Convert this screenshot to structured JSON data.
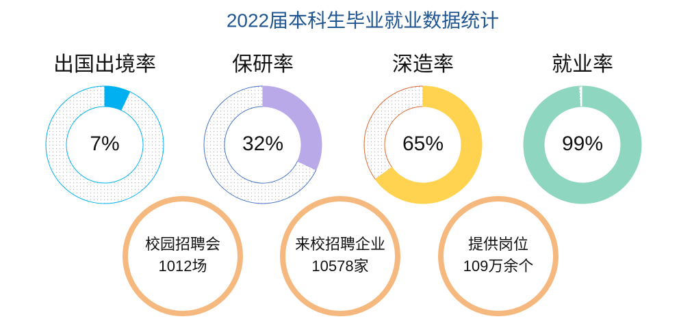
{
  "title": "2022届本科生毕业就业数据统计",
  "rings": [
    {
      "label": "出国出境率",
      "value": 7,
      "value_label": "7%",
      "color": "#00b0f0",
      "track_color": "#00b0f0"
    },
    {
      "label": "保研率",
      "value": 32,
      "value_label": "32%",
      "color": "#b9a9e8",
      "track_color": "#4472c4"
    },
    {
      "label": "深造率",
      "value": 65,
      "value_label": "65%",
      "color": "#ffd24f",
      "track_color": "#e0662c"
    },
    {
      "label": "就业率",
      "value": 99,
      "value_label": "99%",
      "color": "#8fd6c1",
      "track_color": "#8fd6c1"
    }
  ],
  "stats": [
    {
      "lines": [
        "校园招聘会",
        "1012场"
      ]
    },
    {
      "lines": [
        "来校招聘企业",
        "10578家"
      ]
    },
    {
      "lines": [
        "提供岗位",
        "109万余个"
      ]
    }
  ]
}
